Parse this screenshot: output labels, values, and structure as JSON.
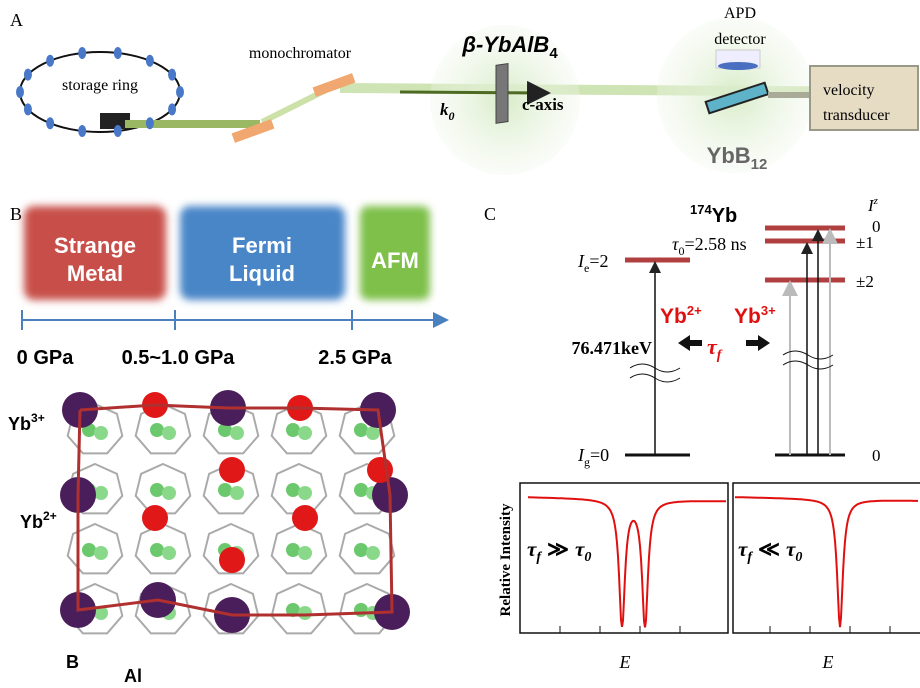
{
  "panel_a": {
    "label": "A",
    "storage_ring": "storage ring",
    "monochromator": "monochromator",
    "sample": {
      "text": "β-YbAlB",
      "sub": "4"
    },
    "wavevector": {
      "text": "k",
      "sub": "0"
    },
    "c_axis": "c-axis",
    "apd": [
      "APD",
      "detector"
    ],
    "absorber": {
      "text": "YbB",
      "sub": "12"
    },
    "transducer": [
      "velocity",
      "transducer"
    ]
  },
  "panel_b": {
    "label": "B",
    "phases": [
      {
        "lines": [
          "Strange",
          "Metal"
        ]
      },
      {
        "lines": [
          "Fermi",
          "Liquid"
        ]
      },
      {
        "lines": [
          "AFM"
        ]
      }
    ],
    "pressures": [
      "0 GPa",
      "0.5~1.0 GPa",
      "2.5 GPa"
    ],
    "sites": [
      {
        "text": "Yb",
        "sup": "3+"
      },
      {
        "text": "Yb",
        "sup": "2+"
      }
    ],
    "atoms": [
      "B",
      "Al"
    ]
  },
  "panel_c": {
    "label": "C",
    "isotope": {
      "sup": "174",
      "text": "Yb"
    },
    "lifetime": {
      "text": "τ",
      "sub": "0",
      "post": "=2.58 ns"
    },
    "excited": {
      "text": "I",
      "sub": "e",
      "post": "=2"
    },
    "ground": {
      "text": "I",
      "sub": "g",
      "post": "=0"
    },
    "energy": "76.471keV",
    "valence": [
      {
        "text": "Yb",
        "sup": "2+"
      },
      {
        "text": "Yb",
        "sup": "3+"
      }
    ],
    "tau_f": {
      "text": "τ",
      "sub": "f"
    },
    "iz": {
      "text": "I",
      "sup": "z"
    },
    "sublevels": [
      "0",
      "±1",
      "±2",
      "0"
    ],
    "y_axis": "Relative Intensity",
    "cases": [
      {
        "t1": "τ",
        "s1": "f",
        "rel": "≫",
        "t2": "τ",
        "s2": "0"
      },
      {
        "t1": "τ",
        "s1": "f",
        "rel": "≪",
        "t2": "τ",
        "s2": "0"
      }
    ],
    "x_axis": [
      "E",
      "E"
    ]
  }
}
